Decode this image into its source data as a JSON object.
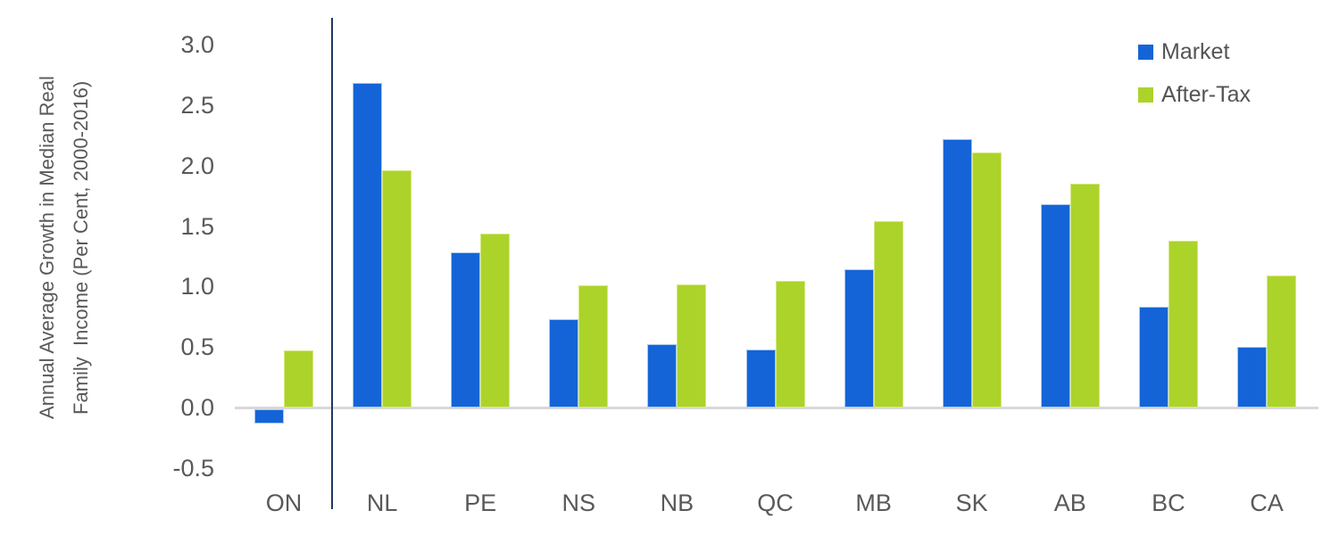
{
  "chart_data": {
    "type": "bar",
    "title": "",
    "ylabel": "Annual Average Growth in Median Real\nFamily  Income (Per Cent, 2000-2016)",
    "xlabel": "",
    "categories": [
      "ON",
      "NL",
      "PE",
      "NS",
      "NB",
      "QC",
      "MB",
      "SK",
      "AB",
      "BC",
      "CA"
    ],
    "series": [
      {
        "name": "Market",
        "color": "#1464D8",
        "border_color": "#A6C7EF",
        "values": [
          -0.12,
          2.68,
          1.28,
          0.73,
          0.52,
          0.48,
          1.14,
          2.22,
          1.68,
          0.83,
          0.5
        ]
      },
      {
        "name": "After-Tax",
        "color": "#ACD32A",
        "border_color": "#D5E87E",
        "values": [
          0.47,
          1.96,
          1.44,
          1.01,
          1.02,
          1.05,
          1.54,
          2.11,
          1.85,
          1.38,
          1.09
        ]
      }
    ],
    "yticks": [
      "3.0",
      "2.5",
      "2.0",
      "1.5",
      "1.0",
      "0.5",
      "0.0",
      "-0.5"
    ],
    "ytick_values": [
      3.0,
      2.5,
      2.0,
      1.5,
      1.0,
      0.5,
      0.0,
      -0.5
    ],
    "ylim": [
      -0.5,
      3.0
    ],
    "grid": false,
    "legend_position": "top-right",
    "separator_after_category": "ON",
    "colors": {
      "axis_line": "#D9D9D9",
      "separator_line": "#1F3864",
      "text": "#595959"
    }
  }
}
